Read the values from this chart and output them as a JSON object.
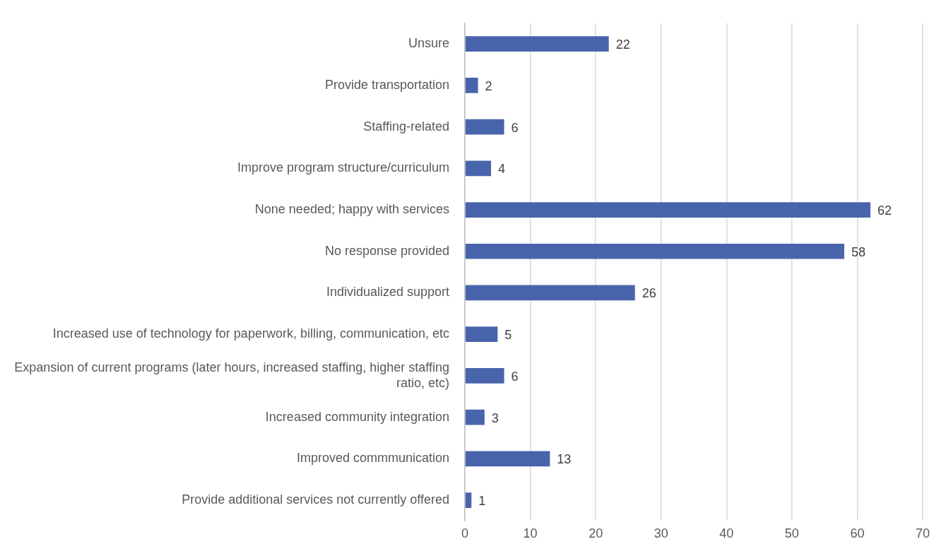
{
  "chart_data": {
    "type": "bar",
    "orientation": "horizontal",
    "categories": [
      "Unsure",
      "Provide transportation",
      "Staffing-related",
      "Improve program structure/curriculum",
      "None needed; happy with services",
      "No response provided",
      "Individualized support",
      "Increased use of technology for paperwork, billing, communication, etc",
      "Expansion of current programs (later hours, increased staffing, higher staffing ratio, etc)",
      "Increased community integration",
      "Improved commmunication",
      "Provide additional services not currently offered"
    ],
    "values": [
      22,
      2,
      6,
      4,
      62,
      58,
      26,
      5,
      6,
      3,
      13,
      1
    ],
    "color": "#4864ab",
    "xlim": [
      0,
      70
    ],
    "xticks": [
      0,
      10,
      20,
      30,
      40,
      50,
      60,
      70
    ],
    "grid": "x",
    "legend": false,
    "data_labels": true
  }
}
